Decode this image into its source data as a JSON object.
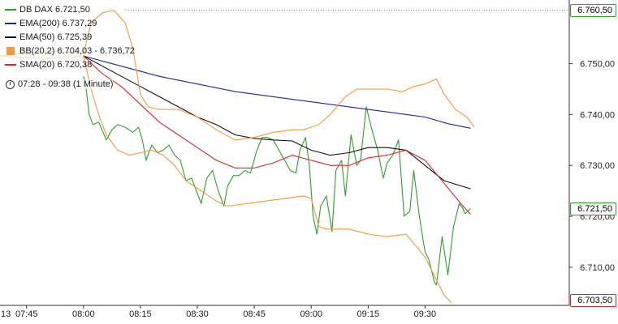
{
  "chart_data": {
    "type": "line",
    "title": "",
    "xlabel": "",
    "ylabel": "",
    "x_axis": {
      "start_minute": 428,
      "end_minute": 578,
      "ticks": [
        {
          "m": 435,
          "label": "07:45"
        },
        {
          "m": 450,
          "label": "08:00"
        },
        {
          "m": 465,
          "label": "08:15"
        },
        {
          "m": 480,
          "label": "08:30"
        },
        {
          "m": 495,
          "label": "08:45"
        },
        {
          "m": 510,
          "label": "09:00"
        },
        {
          "m": 525,
          "label": "09:15"
        },
        {
          "m": 540,
          "label": "09:30"
        }
      ],
      "left_edge_label": "13"
    },
    "y_axis": {
      "ylim": [
        6702.5,
        6762.5
      ],
      "ticks": [
        {
          "v": 6750,
          "label": "6.750,00"
        },
        {
          "v": 6740,
          "label": "6.740,00"
        },
        {
          "v": 6730,
          "label": "6.730,00"
        },
        {
          "v": 6720,
          "label": "6.720,00"
        },
        {
          "v": 6710,
          "label": "6.710,00"
        }
      ]
    },
    "grid": false,
    "legend_position": "top-left",
    "time_range_label": "07:28 - 09:38 (1 Minute)",
    "price_tags": [
      {
        "label": "6.760,50",
        "value": 6760.5,
        "dotted_line": true
      },
      {
        "label": "6.721,50",
        "value": 6721.5,
        "dotted_line": false
      },
      {
        "label": "6.703,50",
        "value": 6703.5,
        "dotted_line": false
      }
    ],
    "series": [
      {
        "name": "DB DAX 6.721,50",
        "color": "#2ca02c",
        "points": [
          [
            450,
            6747.5
          ],
          [
            450.5,
            6746.3
          ],
          [
            451.5,
            6740
          ],
          [
            452.5,
            6738
          ],
          [
            454,
            6738.5
          ],
          [
            456,
            6735
          ],
          [
            457.5,
            6737
          ],
          [
            459,
            6738
          ],
          [
            461,
            6737.5
          ],
          [
            463,
            6736.5
          ],
          [
            464.5,
            6737.5
          ],
          [
            465.5,
            6735
          ],
          [
            466.5,
            6731
          ],
          [
            468,
            6734
          ],
          [
            469.5,
            6732.5
          ],
          [
            471,
            6733
          ],
          [
            472.5,
            6734
          ],
          [
            474,
            6732
          ],
          [
            475.5,
            6731
          ],
          [
            477,
            6727
          ],
          [
            478.5,
            6727.5
          ],
          [
            480,
            6724.5
          ],
          [
            481,
            6722.5
          ],
          [
            482.5,
            6727.5
          ],
          [
            484,
            6729
          ],
          [
            485.5,
            6725
          ],
          [
            487,
            6722
          ],
          [
            488,
            6726
          ],
          [
            489.5,
            6728
          ],
          [
            491,
            6728
          ],
          [
            492.5,
            6729
          ],
          [
            494,
            6728.5
          ],
          [
            495.5,
            6732.5
          ],
          [
            497,
            6735.5
          ],
          [
            498.5,
            6735.5
          ],
          [
            500,
            6735
          ],
          [
            501.5,
            6733
          ],
          [
            503,
            6731
          ],
          [
            504.5,
            6729
          ],
          [
            506,
            6728.5
          ],
          [
            507,
            6733
          ],
          [
            508.5,
            6735.5
          ],
          [
            509.5,
            6730
          ],
          [
            510.5,
            6720
          ],
          [
            511.5,
            6716.5
          ],
          [
            512.5,
            6722
          ],
          [
            514,
            6724
          ],
          [
            515.5,
            6717
          ],
          [
            516.5,
            6729
          ],
          [
            518,
            6731
          ],
          [
            519,
            6724
          ],
          [
            520.5,
            6736
          ],
          [
            522,
            6730
          ],
          [
            523,
            6731
          ],
          [
            524.5,
            6741.5
          ],
          [
            526,
            6737
          ],
          [
            527.5,
            6733
          ],
          [
            529,
            6727.5
          ],
          [
            530,
            6730.5
          ],
          [
            531.5,
            6732
          ],
          [
            533,
            6735
          ],
          [
            534.5,
            6720
          ],
          [
            536,
            6721
          ],
          [
            537,
            6729
          ],
          [
            538.5,
            6720
          ],
          [
            540,
            6713
          ],
          [
            541,
            6711.5
          ],
          [
            542.5,
            6707
          ],
          [
            543,
            6706.5
          ],
          [
            544.5,
            6716
          ],
          [
            546,
            6708.5
          ],
          [
            547.5,
            6718
          ],
          [
            549,
            6722.5
          ],
          [
            550,
            6721.5
          ],
          [
            550.5,
            6720.5
          ],
          [
            552,
            6721.5
          ]
        ]
      },
      {
        "name": "EMA(200) 6.737,29",
        "color": "#1f2a8c",
        "points": [
          [
            450,
            6751.5
          ],
          [
            460,
            6749.5
          ],
          [
            470,
            6747.5
          ],
          [
            480,
            6746
          ],
          [
            490,
            6744.5
          ],
          [
            500,
            6743.5
          ],
          [
            510,
            6742.5
          ],
          [
            520,
            6741.5
          ],
          [
            530,
            6740.5
          ],
          [
            540,
            6739.5
          ],
          [
            546,
            6738.2
          ],
          [
            552,
            6737.3
          ]
        ]
      },
      {
        "name": "EMA(50) 6.725,39",
        "color": "#111111",
        "points": [
          [
            450,
            6751.5
          ],
          [
            455,
            6749.5
          ],
          [
            460,
            6747.5
          ],
          [
            465,
            6745.5
          ],
          [
            470,
            6743.5
          ],
          [
            475,
            6741.5
          ],
          [
            480,
            6739.5
          ],
          [
            485,
            6738
          ],
          [
            490,
            6736
          ],
          [
            495,
            6735.3
          ],
          [
            500,
            6735
          ],
          [
            505,
            6734.8
          ],
          [
            510,
            6733
          ],
          [
            515,
            6732
          ],
          [
            520,
            6732.5
          ],
          [
            525,
            6733.5
          ],
          [
            530,
            6733.5
          ],
          [
            535,
            6733
          ],
          [
            540,
            6730
          ],
          [
            545,
            6727
          ],
          [
            552,
            6725.4
          ]
        ]
      },
      {
        "name": "SMA(20) 6.720,38",
        "color": "#d62728",
        "points": [
          [
            450,
            6751.5
          ],
          [
            455,
            6748
          ],
          [
            460,
            6745.5
          ],
          [
            465,
            6742
          ],
          [
            470,
            6738.5
          ],
          [
            475,
            6736
          ],
          [
            480,
            6733.5
          ],
          [
            485,
            6731
          ],
          [
            490,
            6729.5
          ],
          [
            495,
            6729.5
          ],
          [
            500,
            6730.5
          ],
          [
            505,
            6732
          ],
          [
            510,
            6731
          ],
          [
            515,
            6730
          ],
          [
            520,
            6730
          ],
          [
            525,
            6731.5
          ],
          [
            530,
            6732
          ],
          [
            535,
            6733
          ],
          [
            540,
            6731
          ],
          [
            545,
            6726.5
          ],
          [
            550,
            6722
          ],
          [
            552,
            6720.4
          ]
        ]
      },
      {
        "name": "BB(20,2) upper",
        "color": "#f29a3e",
        "points": [
          [
            450,
            6752
          ],
          [
            452,
            6758
          ],
          [
            455,
            6760
          ],
          [
            458,
            6760.5
          ],
          [
            461,
            6758
          ],
          [
            463,
            6753
          ],
          [
            465,
            6744
          ],
          [
            467,
            6741.5
          ],
          [
            470,
            6741
          ],
          [
            475,
            6741
          ],
          [
            480,
            6739.5
          ],
          [
            485,
            6737
          ],
          [
            490,
            6735
          ],
          [
            495,
            6735.5
          ],
          [
            500,
            6736.5
          ],
          [
            505,
            6737
          ],
          [
            508,
            6737
          ],
          [
            512,
            6738
          ],
          [
            515,
            6740
          ],
          [
            519,
            6743.5
          ],
          [
            522,
            6745
          ],
          [
            526,
            6745
          ],
          [
            530,
            6745
          ],
          [
            534,
            6744.5
          ],
          [
            537,
            6745.5
          ],
          [
            540,
            6746
          ],
          [
            543,
            6747
          ],
          [
            545,
            6744
          ],
          [
            548,
            6741
          ],
          [
            551,
            6739.5
          ],
          [
            553,
            6737.5
          ]
        ]
      },
      {
        "name": "BB(20,2) lower",
        "color": "#f29a3e",
        "points": [
          [
            450,
            6751.5
          ],
          [
            452,
            6745
          ],
          [
            454,
            6740
          ],
          [
            456,
            6736
          ],
          [
            459,
            6733
          ],
          [
            462,
            6732
          ],
          [
            465,
            6732.5
          ],
          [
            468,
            6733
          ],
          [
            471,
            6732
          ],
          [
            474,
            6730
          ],
          [
            477,
            6727
          ],
          [
            480,
            6725.5
          ],
          [
            485,
            6723
          ],
          [
            488,
            6722
          ],
          [
            493,
            6722.5
          ],
          [
            498,
            6723
          ],
          [
            503,
            6723.5
          ],
          [
            508,
            6724
          ],
          [
            510,
            6723.5
          ],
          [
            512,
            6718
          ],
          [
            514,
            6717.5
          ],
          [
            520,
            6717.5
          ],
          [
            525,
            6716.5
          ],
          [
            530,
            6716
          ],
          [
            535,
            6716.5
          ],
          [
            540,
            6712
          ],
          [
            542,
            6709
          ],
          [
            545,
            6704.5
          ],
          [
            547,
            6703
          ]
        ]
      }
    ]
  },
  "legend": {
    "items": [
      {
        "label": "DB DAX 6.721,50",
        "color": "#2ca02c",
        "kind": "line"
      },
      {
        "label": "EMA(200) 6.737,29",
        "color": "#1f2a8c",
        "kind": "line"
      },
      {
        "label": "EMA(50) 6.725,39",
        "color": "#111111",
        "kind": "line"
      },
      {
        "label": "BB(20,2) 6.704,03 - 6.736,72",
        "color": "#f29a3e",
        "kind": "box"
      },
      {
        "label": "SMA(20) 6.720,38",
        "color": "#d62728",
        "kind": "line"
      }
    ]
  },
  "price_tag_colors": {
    "6.760,50": "#2ca02c",
    "6.721,50": "#2ca02c",
    "6.703,50": "#d62728"
  }
}
